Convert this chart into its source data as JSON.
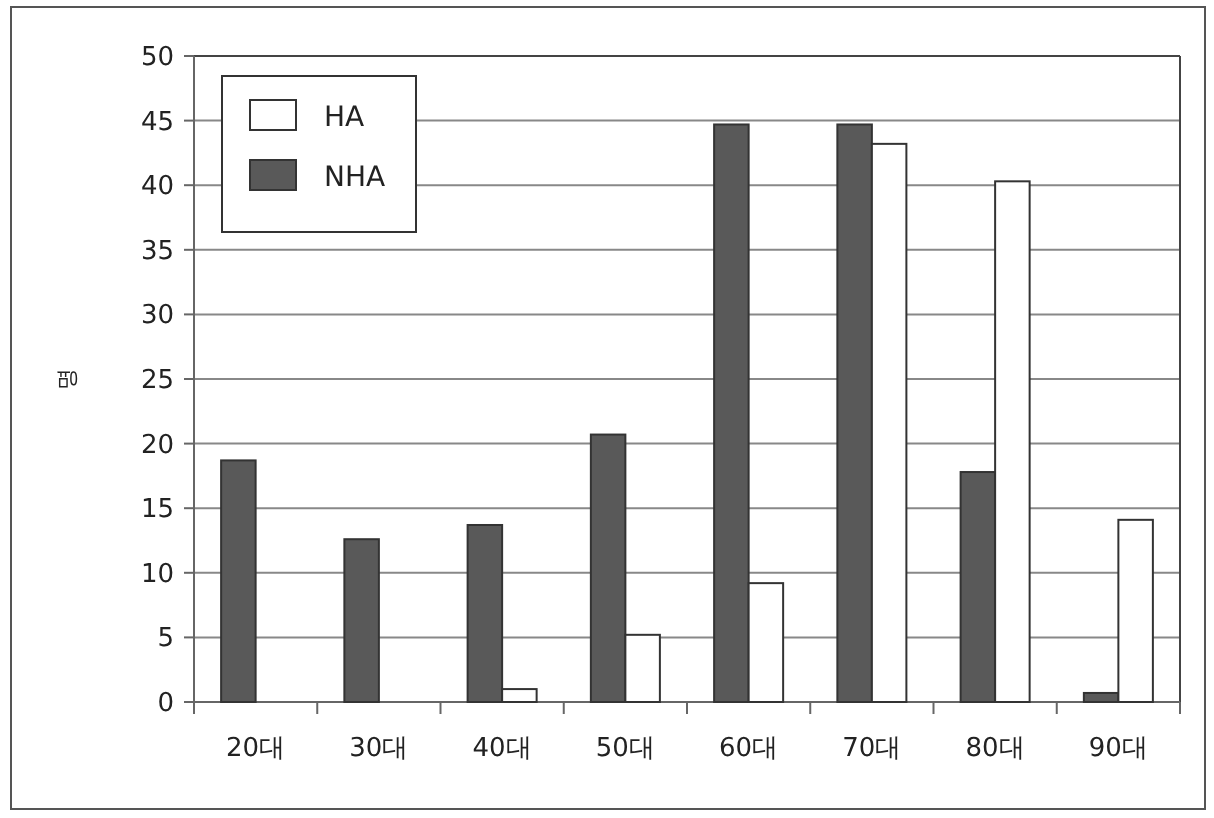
{
  "chart_data": {
    "type": "bar",
    "ylabel": "명",
    "categories": [
      "20대",
      "30대",
      "40대",
      "50대",
      "60대",
      "70대",
      "80대",
      "90대"
    ],
    "series": [
      {
        "name": "NHA",
        "color": "#595959",
        "values": [
          18.7,
          12.6,
          13.7,
          20.7,
          44.7,
          44.7,
          17.8,
          0.7
        ]
      },
      {
        "name": "HA",
        "color": "#ffffff",
        "values": [
          null,
          null,
          1.0,
          5.2,
          9.2,
          43.2,
          40.3,
          14.1
        ]
      }
    ],
    "ylim": [
      0,
      50
    ],
    "yticks": [
      0,
      5,
      10,
      15,
      20,
      25,
      30,
      35,
      40,
      45,
      50
    ],
    "grid": "y",
    "legend": "top left"
  }
}
